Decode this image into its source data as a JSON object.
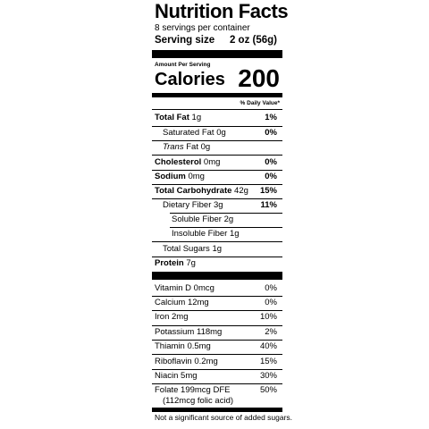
{
  "title": "Nutrition Facts",
  "servings": "8 servings per container",
  "serving_size": {
    "label": "Serving size",
    "value": "2 oz (56g)"
  },
  "amount_per_serving": "Amount Per Serving",
  "calories": {
    "label": "Calories",
    "value": "200"
  },
  "dv_header": "% Daily Value*",
  "nutrients": [
    {
      "name": "Total Fat",
      "amount": "1g",
      "dv": "1%"
    },
    {
      "name": "Saturated Fat",
      "amount": "0g",
      "dv": "0%"
    },
    {
      "name": "Trans",
      "name_suffix": "Fat",
      "amount": "0g",
      "dv": ""
    },
    {
      "name": "Cholesterol",
      "amount": "0mg",
      "dv": "0%"
    },
    {
      "name": "Sodium",
      "amount": "0mg",
      "dv": "0%"
    },
    {
      "name": "Total Carbohydrate",
      "amount": "42g",
      "dv": "15%"
    },
    {
      "name": "Dietary Fiber",
      "amount": "3g",
      "dv": "11%"
    },
    {
      "name": "Soluble Fiber",
      "amount": "2g",
      "dv": ""
    },
    {
      "name": "Insoluble Fiber",
      "amount": "1g",
      "dv": ""
    },
    {
      "name": "Total Sugars",
      "amount": "1g",
      "dv": ""
    },
    {
      "name": "Protein",
      "amount": "7g",
      "dv": ""
    }
  ],
  "vitamins": [
    {
      "name": "Vitamin D",
      "amount": "0mcg",
      "dv": "0%"
    },
    {
      "name": "Calcium",
      "amount": "12mg",
      "dv": "0%"
    },
    {
      "name": "Iron",
      "amount": "2mg",
      "dv": "10%"
    },
    {
      "name": "Potassium",
      "amount": "118mg",
      "dv": "2%"
    },
    {
      "name": "Thiamin",
      "amount": "0.5mg",
      "dv": "40%"
    },
    {
      "name": "Riboflavin",
      "amount": "0.2mg",
      "dv": "15%"
    },
    {
      "name": "Niacin",
      "amount": "5mg",
      "dv": "30%"
    },
    {
      "name": "Folate",
      "amount": "199mcg DFE",
      "dv": "50%",
      "sub": "(112mcg folic acid)"
    }
  ],
  "footnote": "Not a significant source of added sugars."
}
